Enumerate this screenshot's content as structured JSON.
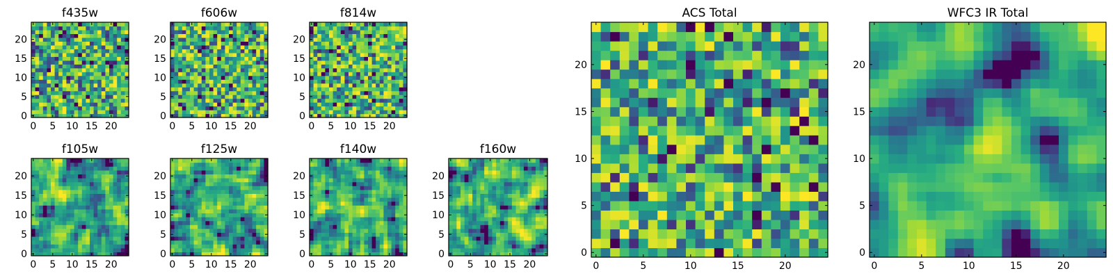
{
  "chart_data": [
    {
      "type": "heatmap",
      "title": "f435w",
      "grid_size": 25,
      "colormap": "viridis",
      "value_range": [
        0,
        1
      ],
      "xticks": [
        "0",
        "5",
        "10",
        "15",
        "20"
      ],
      "yticks": [
        "0",
        "5",
        "10",
        "15",
        "20"
      ],
      "seed": 11,
      "smoothing": 0,
      "values": []
    },
    {
      "type": "heatmap",
      "title": "f606w",
      "grid_size": 25,
      "colormap": "viridis",
      "value_range": [
        0,
        1
      ],
      "xticks": [
        "0",
        "5",
        "10",
        "15",
        "20"
      ],
      "yticks": [
        "0",
        "5",
        "10",
        "15",
        "20"
      ],
      "seed": 23,
      "smoothing": 0,
      "values": []
    },
    {
      "type": "heatmap",
      "title": "f814w",
      "grid_size": 25,
      "colormap": "viridis",
      "value_range": [
        0,
        1
      ],
      "xticks": [
        "0",
        "5",
        "10",
        "15",
        "20"
      ],
      "yticks": [
        "0",
        "5",
        "10",
        "15",
        "20"
      ],
      "seed": 37,
      "smoothing": 0,
      "values": []
    },
    {
      "type": "heatmap",
      "title": "f105w",
      "grid_size": 25,
      "colormap": "viridis",
      "value_range": [
        0,
        1
      ],
      "xticks": [
        "0",
        "5",
        "10",
        "15",
        "20"
      ],
      "yticks": [
        "0",
        "5",
        "10",
        "15",
        "20"
      ],
      "seed": 41,
      "smoothing": 1,
      "values": []
    },
    {
      "type": "heatmap",
      "title": "f125w",
      "grid_size": 25,
      "colormap": "viridis",
      "value_range": [
        0,
        1
      ],
      "xticks": [
        "0",
        "5",
        "10",
        "15",
        "20"
      ],
      "yticks": [
        "0",
        "5",
        "10",
        "15",
        "20"
      ],
      "seed": 53,
      "smoothing": 1,
      "values": []
    },
    {
      "type": "heatmap",
      "title": "f140w",
      "grid_size": 25,
      "colormap": "viridis",
      "value_range": [
        0,
        1
      ],
      "xticks": [
        "0",
        "5",
        "10",
        "15",
        "20"
      ],
      "yticks": [
        "0",
        "5",
        "10",
        "15",
        "20"
      ],
      "seed": 67,
      "smoothing": 1,
      "values": []
    },
    {
      "type": "heatmap",
      "title": "f160w",
      "grid_size": 25,
      "colormap": "viridis",
      "value_range": [
        0,
        1
      ],
      "xticks": [
        "0",
        "5",
        "10",
        "15",
        "20"
      ],
      "yticks": [
        "0",
        "5",
        "10",
        "15",
        "20"
      ],
      "seed": 79,
      "smoothing": 1,
      "values": []
    },
    {
      "type": "heatmap",
      "title": "ACS Total",
      "grid_size": 25,
      "colormap": "viridis",
      "value_range": [
        0,
        1
      ],
      "xticks": [
        "0",
        "5",
        "10",
        "15",
        "20"
      ],
      "yticks": [
        "0",
        "5",
        "10",
        "15",
        "20"
      ],
      "seed": 97,
      "smoothing": 0,
      "values": []
    },
    {
      "type": "heatmap",
      "title": "WFC3 IR Total",
      "grid_size": 25,
      "colormap": "viridis",
      "value_range": [
        0,
        1
      ],
      "xticks": [
        "0",
        "5",
        "10",
        "15",
        "20"
      ],
      "yticks": [
        "0",
        "5",
        "10",
        "15",
        "20"
      ],
      "seed": 101,
      "smoothing": 2,
      "values": []
    }
  ]
}
